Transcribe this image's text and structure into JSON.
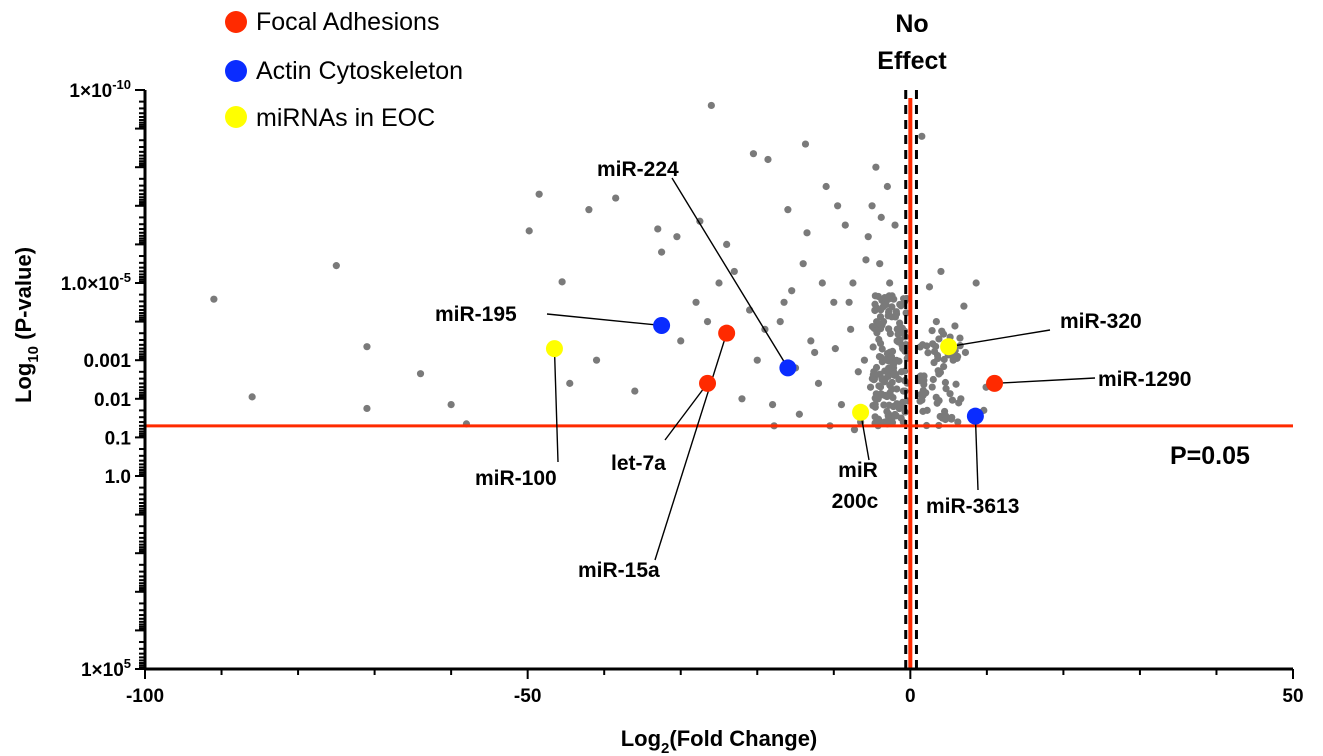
{
  "chart_data": {
    "type": "scatter",
    "x_axis": {
      "label": "Log2(Fold Change)",
      "range": [
        -100,
        50
      ],
      "ticks": [
        {
          "value": -100,
          "label": "-100"
        },
        {
          "value": -50,
          "label": "-50"
        },
        {
          "value": 0,
          "label": "0"
        },
        {
          "value": 50,
          "label": "50"
        }
      ]
    },
    "y_axis": {
      "label": "Log10 (P-value)",
      "scale": "log",
      "inverted": true,
      "range_exponent": [
        -10,
        5
      ],
      "ticks": [
        {
          "exp": -10,
          "label": "1×10-10"
        },
        {
          "exp": -5,
          "label": "1.0×10-5"
        },
        {
          "exp": -3,
          "label": "0.001"
        },
        {
          "exp": -2,
          "label": "0.01"
        },
        {
          "exp": -1,
          "label": "0.1"
        },
        {
          "exp": 0,
          "label": "1.0"
        },
        {
          "exp": 5,
          "label": "1×105"
        }
      ]
    },
    "legend": {
      "placement": "top-left",
      "items": [
        {
          "label": "Focal Adhesions",
          "color": "#ff2a00"
        },
        {
          "label": "Actin Cytoskeleton",
          "color": "#0a2cff"
        },
        {
          "label": "miRNAs in EOC",
          "color": "#ffff00"
        }
      ]
    },
    "reference_lines": {
      "no_effect_label": "No Effect",
      "no_effect_x": 0,
      "no_effect_dashed_x": [
        -0.6,
        0.8
      ],
      "p_label": "P=0.05",
      "p_exp": -1.3,
      "line_color": "#ff2a00"
    },
    "point_color": "#7a7a7a",
    "gray_points": [
      [
        -91,
        -4.58
      ],
      [
        -75,
        -5.45
      ],
      [
        -71,
        -3.35
      ],
      [
        -64,
        -2.65
      ],
      [
        -60,
        -1.85
      ],
      [
        -58,
        -1.35
      ],
      [
        -71,
        -1.75
      ],
      [
        -86,
        -2.05
      ],
      [
        -48.5,
        -7.3
      ],
      [
        -49.8,
        -6.35
      ],
      [
        -45.5,
        -5.03
      ],
      [
        -38.5,
        -7.2
      ],
      [
        -33,
        -6.4
      ],
      [
        -26,
        -9.6
      ],
      [
        -20.5,
        -8.35
      ],
      [
        -18.6,
        -8.2
      ],
      [
        -13.7,
        -8.6
      ],
      [
        -42,
        -6.9
      ],
      [
        -44.5,
        -2.4
      ],
      [
        -41,
        -3.0
      ],
      [
        -36,
        -2.2
      ],
      [
        -30,
        -3.5
      ],
      [
        -28,
        -4.5
      ],
      [
        -25,
        -5.0
      ],
      [
        -20,
        -3.0
      ],
      [
        -17,
        -4.0
      ],
      [
        -13,
        -3.5
      ],
      [
        -10,
        -4.5
      ],
      [
        -8,
        -4.5
      ],
      [
        -6,
        -3.0
      ],
      [
        -7.3,
        -1.2
      ],
      [
        -9,
        -1.85
      ],
      [
        -12,
        -2.4
      ],
      [
        -5,
        -7.0
      ],
      [
        -5.5,
        -6.2
      ],
      [
        -4,
        -5.5
      ],
      [
        -3.5,
        -4.0
      ],
      [
        -2.5,
        -3.0
      ],
      [
        -1.5,
        -2.5
      ],
      [
        -2,
        -6.5
      ],
      [
        -3,
        -7.5
      ],
      [
        -4.5,
        -8.0
      ],
      [
        -22,
        -2.0
      ],
      [
        -18,
        -1.85
      ],
      [
        -24,
        -6.0
      ],
      [
        -16,
        -6.9
      ],
      [
        -11,
        -7.5
      ],
      [
        -9.5,
        -7.0
      ],
      [
        -14,
        -5.5
      ],
      [
        -15.5,
        -4.8
      ],
      [
        -19,
        -3.8
      ],
      [
        -21,
        -4.3
      ],
      [
        -23,
        -5.3
      ],
      [
        -26.5,
        -4.0
      ],
      [
        -27.5,
        -6.6
      ],
      [
        -30.5,
        -6.2
      ],
      [
        -32.5,
        -5.8
      ],
      [
        -17.8,
        -1.3
      ],
      [
        -10.5,
        -1.3
      ],
      [
        -14.5,
        -1.6
      ],
      [
        -6.5,
        -1.4
      ],
      [
        -3,
        -1.35
      ],
      [
        -1.2,
        -1.5
      ],
      [
        1.5,
        -8.8
      ],
      [
        2.5,
        -4.9
      ],
      [
        4,
        -5.3
      ],
      [
        5.2,
        -3.6
      ],
      [
        7,
        -4.4
      ],
      [
        8.6,
        -5.0
      ],
      [
        9.6,
        -1.7
      ],
      [
        9.9,
        -2.3
      ],
      [
        3,
        -2.5
      ],
      [
        2.2,
        -1.7
      ],
      [
        4.2,
        -1.5
      ],
      [
        6.2,
        -1.4
      ],
      [
        5.6,
        -3.0
      ],
      [
        7.2,
        -3.2
      ],
      [
        3.4,
        -4.0
      ],
      [
        6.6,
        -2.0
      ],
      [
        1.6,
        -3.4
      ],
      [
        8.0,
        -1.6
      ],
      [
        -7.5,
        -5.0
      ],
      [
        -8.5,
        -6.5
      ],
      [
        -11.5,
        -5.0
      ],
      [
        -12.5,
        -3.2
      ],
      [
        -5.2,
        -2.3
      ],
      [
        -4.2,
        -2.0
      ],
      [
        -2.2,
        -1.8
      ],
      [
        -15,
        -2.8
      ],
      [
        -16.5,
        -4.5
      ],
      [
        -13.5,
        -6.3
      ],
      [
        -9.8,
        -3.3
      ],
      [
        -7.8,
        -3.8
      ],
      [
        -6.8,
        -2.7
      ],
      [
        -5.8,
        -5.6
      ],
      [
        -3.8,
        -6.7
      ],
      [
        -2.7,
        -5.0
      ],
      [
        -1.8,
        -4.2
      ],
      [
        -1.0,
        -3.3
      ],
      [
        -0.9,
        -2.2
      ]
    ],
    "highlighted_points": [
      {
        "name": "miR-195",
        "x": -32.5,
        "y_exp": -3.9,
        "color": "#0a2cff"
      },
      {
        "name": "miR-100",
        "x": -46.5,
        "y_exp": -3.3,
        "color": "#ffff00"
      },
      {
        "name": "miR-15a",
        "x": -24,
        "y_exp": -3.7,
        "color": "#ff2a00"
      },
      {
        "name": "let-7a",
        "x": -26.5,
        "y_exp": -2.4,
        "color": "#ff2a00"
      },
      {
        "name": "miR-224",
        "x": -16,
        "y_exp": -2.8,
        "color": "#0a2cff"
      },
      {
        "name": "miR 200c",
        "x": -6.5,
        "y_exp": -1.65,
        "color": "#ffff00"
      },
      {
        "name": "miR-320",
        "x": 5,
        "y_exp": -3.35,
        "color": "#ffff00"
      },
      {
        "name": "miR-1290",
        "x": 11,
        "y_exp": -2.4,
        "color": "#ff2a00"
      },
      {
        "name": "miR-3613",
        "x": 8.5,
        "y_exp": -1.55,
        "color": "#0a2cff"
      }
    ],
    "point_labels": {
      "miR-195": "miR-195",
      "miR-100": "miR-100",
      "miR-15a": "miR-15a",
      "let-7a": "let-7a",
      "miR-224": "miR-224",
      "miR-200c-line1": "miR",
      "miR-200c-line2": "200c",
      "miR-320": "miR-320",
      "miR-1290": "miR-1290",
      "miR-3613": "miR-3613"
    }
  }
}
